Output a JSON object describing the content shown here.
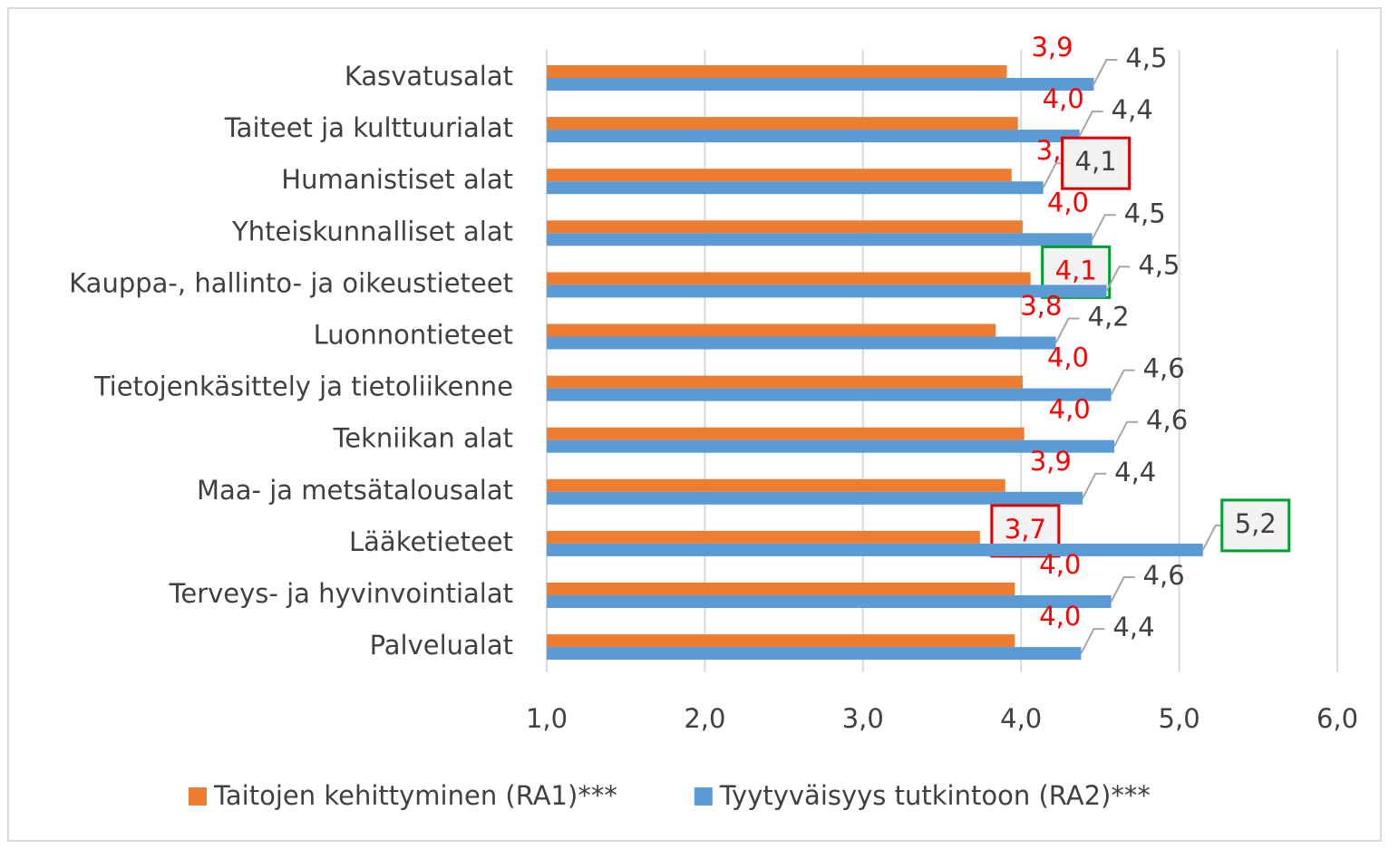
{
  "chart_data": {
    "type": "barh",
    "categories": [
      "Kasvatusalat",
      "Taiteet ja kulttuurialat",
      "Humanistiset alat",
      "Yhteiskunnalliset alat",
      "Kauppa-, hallinto- ja oikeustieteet",
      "Luonnontieteet",
      "Tietojenkäsittely ja tietoliikenne",
      "Tekniikan alat",
      "Maa- ja metsätalousalat",
      "Lääketieteet",
      "Terveys- ja hyvinvointialat",
      "Palvelualat"
    ],
    "series": [
      {
        "name": "Taitojen kehittyminen (RA1)***",
        "color": "#ed7d31",
        "label_color": "#ff0000",
        "values": [
          3.91,
          3.98,
          3.94,
          4.01,
          4.06,
          3.84,
          4.01,
          4.02,
          3.9,
          3.74,
          3.96,
          3.96
        ],
        "value_labels": [
          "3,9",
          "4,0",
          "3,9",
          "4,0",
          "4,1",
          "3,8",
          "4,0",
          "4,0",
          "3,9",
          "3,7",
          "4,0",
          "4,0"
        ]
      },
      {
        "name": "Tyytyväisyys tutkintoon (RA2)***",
        "color": "#5b9bd5",
        "label_color": "#404040",
        "values": [
          4.46,
          4.37,
          4.14,
          4.45,
          4.54,
          4.22,
          4.57,
          4.59,
          4.39,
          5.15,
          4.57,
          4.38
        ],
        "value_labels": [
          "4,5",
          "4,4",
          "4,1",
          "4,5",
          "4,5",
          "4,2",
          "4,6",
          "4,6",
          "4,4",
          "5,2",
          "4,6",
          "4,4"
        ]
      }
    ],
    "xlim": [
      1,
      6
    ],
    "xticks": [
      {
        "value": 1,
        "label": "1,0"
      },
      {
        "value": 2,
        "label": "2,0"
      },
      {
        "value": 3,
        "label": "3,0"
      },
      {
        "value": 4,
        "label": "4,0"
      },
      {
        "value": 5,
        "label": "5,0"
      },
      {
        "value": 6,
        "label": "6,0"
      }
    ],
    "grid": true,
    "legend": "bottom"
  }
}
